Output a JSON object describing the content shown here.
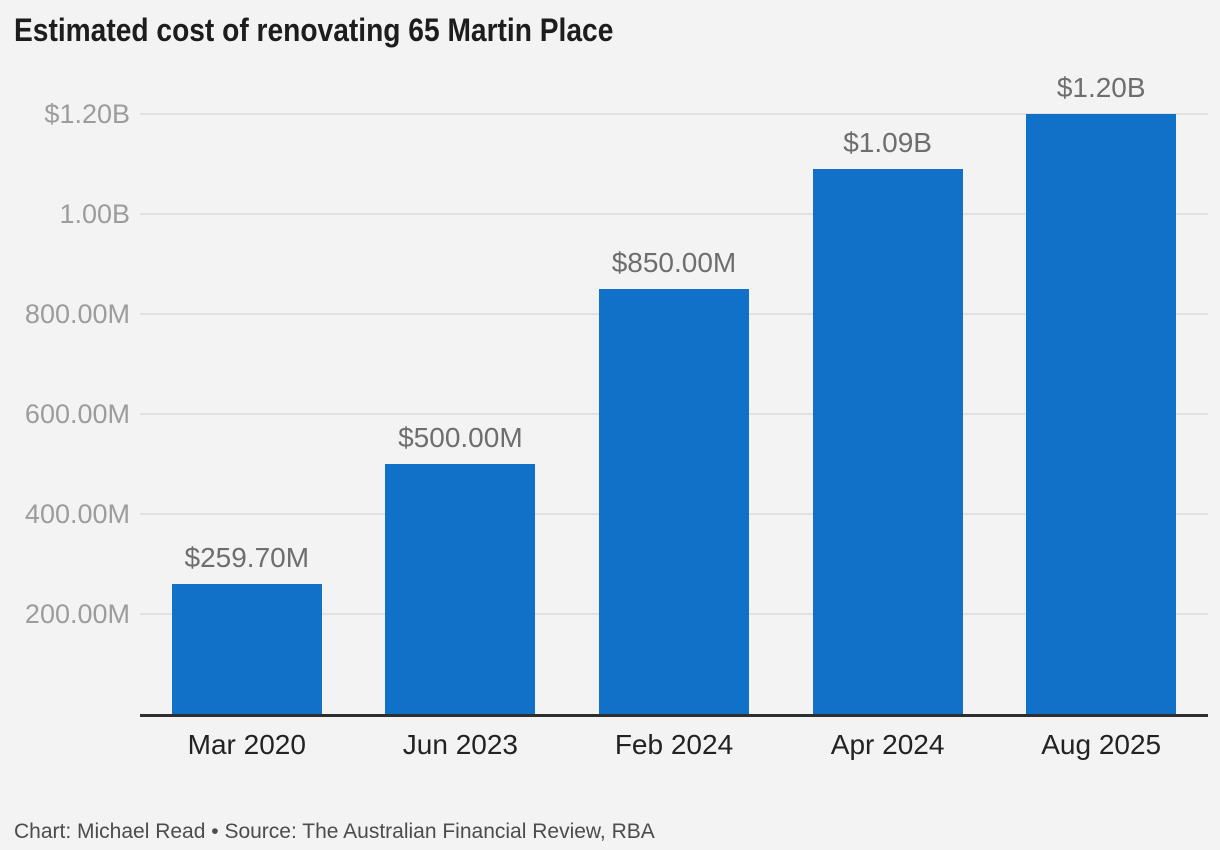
{
  "chart_data": {
    "type": "bar",
    "title": "Estimated cost of renovating 65 Martin Place",
    "categories": [
      "Mar 2020",
      "Jun 2023",
      "Feb 2024",
      "Apr 2024",
      "Aug 2025"
    ],
    "values_millions": [
      259.7,
      500,
      850,
      1090,
      1200
    ],
    "value_labels": [
      "$259.70M",
      "$500.00M",
      "$850.00M",
      "$1.09B",
      "$1.20B"
    ],
    "xlabel": "",
    "ylabel": "",
    "y_axis": {
      "range_millions": [
        0,
        1200
      ],
      "ticks": [
        {
          "value_millions": 200,
          "label": "200.00M"
        },
        {
          "value_millions": 400,
          "label": "400.00M"
        },
        {
          "value_millions": 600,
          "label": "600.00M"
        },
        {
          "value_millions": 800,
          "label": "800.00M"
        },
        {
          "value_millions": 1000,
          "label": "1.00B"
        },
        {
          "value_millions": 1200,
          "label": "$1.20B"
        }
      ]
    },
    "grid": "horizontal",
    "legend": "none"
  },
  "footer": {
    "text": "Chart: Michael Read • Source: The Australian Financial Review, RBA"
  },
  "colors": {
    "background": "#f3f3f3",
    "bar": "#1171c9",
    "gridline": "#e1e1e0",
    "axis_line": "#2e2e2e",
    "title_text": "#1d1d1d",
    "tick_text": "#9c9c9c",
    "value_label_text": "#6e6e6e",
    "category_text": "#222222",
    "footer_text": "#4c4c4c"
  }
}
